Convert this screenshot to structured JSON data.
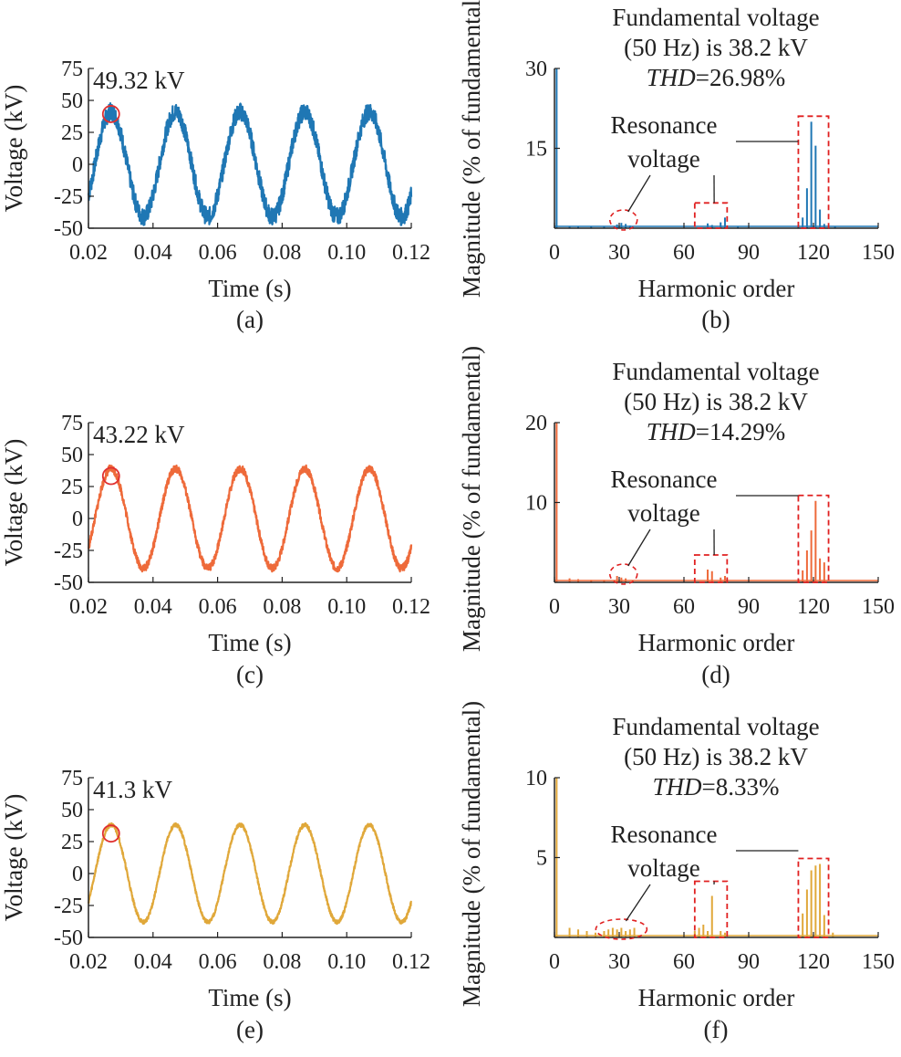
{
  "chart_data": [
    {
      "panel": "(a)",
      "type": "line",
      "xlabel": "Time (s)",
      "ylabel": "Voltage (kV)",
      "xlim": [
        0.02,
        0.12
      ],
      "ylim": [
        -50,
        75
      ],
      "xticks": [
        "0.02",
        "0.04",
        "0.06",
        "0.08",
        "0.10",
        "0.12"
      ],
      "yticks": [
        "75",
        "50",
        "25",
        "0",
        "-25",
        "-50"
      ],
      "color": "#1f77b4",
      "series": [
        {
          "amplitude_kv": 41,
          "frequency_hz": 50,
          "peak_time_s": 0.027,
          "ripple_kv": 7,
          "peak_value_kv": 49.32
        }
      ],
      "peak_label": "49.32 kV"
    },
    {
      "panel": "(b)",
      "type": "bar",
      "xlabel": "Harmonic order",
      "ylabel": "Magnitude (% of fundamental)",
      "xlim": [
        0,
        150
      ],
      "ylim": [
        0,
        30
      ],
      "xticks": [
        "0",
        "30",
        "60",
        "90",
        "120",
        "150"
      ],
      "yticks": [
        "30",
        "15"
      ],
      "color": "#1f77b4",
      "bars": [
        [
          1,
          30
        ],
        [
          7,
          0.4
        ],
        [
          11,
          0.3
        ],
        [
          17,
          0.3
        ],
        [
          23,
          0.3
        ],
        [
          29,
          0.7
        ],
        [
          31,
          1.0
        ],
        [
          33,
          0.8
        ],
        [
          35,
          0.5
        ],
        [
          71,
          0.9
        ],
        [
          73,
          0.6
        ],
        [
          77,
          1.1
        ],
        [
          79,
          2.0
        ],
        [
          85,
          0.4
        ],
        [
          113,
          0.6
        ],
        [
          115,
          2.0
        ],
        [
          117,
          7.5
        ],
        [
          119,
          20.0
        ],
        [
          121,
          15.5
        ],
        [
          123,
          3.5
        ],
        [
          125,
          0.8
        ],
        [
          130,
          0.3
        ]
      ],
      "annotation": {
        "line1": "Fundamental voltage",
        "line2": "(50 Hz) is 38.2 kV",
        "thd_label": "THD",
        "thd_value": "=26.98%"
      },
      "resonance_label": [
        "Resonance",
        "voltage"
      ]
    },
    {
      "panel": "(c)",
      "type": "line",
      "xlabel": "Time (s)",
      "ylabel": "Voltage (kV)",
      "xlim": [
        0.02,
        0.12
      ],
      "ylim": [
        -50,
        75
      ],
      "xticks": [
        "0.02",
        "0.04",
        "0.06",
        "0.08",
        "0.10",
        "0.12"
      ],
      "yticks": [
        "75",
        "50",
        "25",
        "0",
        "-25",
        "-50"
      ],
      "color": "#ee6a3a",
      "series": [
        {
          "amplitude_kv": 39,
          "frequency_hz": 50,
          "peak_time_s": 0.027,
          "ripple_kv": 3,
          "peak_value_kv": 43.22
        }
      ],
      "peak_label": "43.22 kV"
    },
    {
      "panel": "(d)",
      "type": "bar",
      "xlabel": "Harmonic order",
      "ylabel": "Magnitude (% of fundamental)",
      "xlim": [
        0,
        150
      ],
      "ylim": [
        0,
        20
      ],
      "xticks": [
        "0",
        "30",
        "60",
        "90",
        "120",
        "150"
      ],
      "yticks": [
        "20",
        "10"
      ],
      "color": "#ee6a3a",
      "bars": [
        [
          1,
          20
        ],
        [
          7,
          0.5
        ],
        [
          11,
          0.4
        ],
        [
          17,
          0.3
        ],
        [
          23,
          0.3
        ],
        [
          29,
          0.8
        ],
        [
          31,
          0.6
        ],
        [
          33,
          0.5
        ],
        [
          71,
          1.6
        ],
        [
          73,
          1.4
        ],
        [
          77,
          0.6
        ],
        [
          79,
          0.8
        ],
        [
          115,
          1.5
        ],
        [
          117,
          4.0
        ],
        [
          119,
          6.5
        ],
        [
          121,
          10.2
        ],
        [
          123,
          3.0
        ],
        [
          125,
          2.5
        ]
      ],
      "annotation": {
        "line1": "Fundamental voltage",
        "line2": "(50 Hz) is 38.2 kV",
        "thd_label": "THD",
        "thd_value": "=14.29%"
      },
      "resonance_label": [
        "Resonance",
        "voltage"
      ]
    },
    {
      "panel": "(e)",
      "type": "line",
      "xlabel": "Time (s)",
      "ylabel": "Voltage (kV)",
      "xlim": [
        0.02,
        0.12
      ],
      "ylim": [
        -50,
        75
      ],
      "xticks": [
        "0.02",
        "0.04",
        "0.06",
        "0.08",
        "0.10",
        "0.12"
      ],
      "yticks": [
        "75",
        "50",
        "25",
        "0",
        "-25",
        "-50"
      ],
      "color": "#e0a83a",
      "series": [
        {
          "amplitude_kv": 38,
          "frequency_hz": 50,
          "peak_time_s": 0.027,
          "ripple_kv": 1.5,
          "peak_value_kv": 41.3
        }
      ],
      "peak_label": "41.3 kV"
    },
    {
      "panel": "(f)",
      "type": "bar",
      "xlabel": "Harmonic order",
      "ylabel": "Magnitude (% of fundamental)",
      "xlim": [
        0,
        150
      ],
      "ylim": [
        0,
        10
      ],
      "xticks": [
        "0",
        "30",
        "60",
        "90",
        "120",
        "150"
      ],
      "yticks": [
        "10",
        "5"
      ],
      "color": "#e0a83a",
      "bars": [
        [
          1,
          10
        ],
        [
          7,
          0.6
        ],
        [
          11,
          0.5
        ],
        [
          15,
          0.4
        ],
        [
          19,
          0.3
        ],
        [
          23,
          0.4
        ],
        [
          25,
          0.5
        ],
        [
          27,
          0.6
        ],
        [
          29,
          0.5
        ],
        [
          31,
          0.6
        ],
        [
          33,
          0.4
        ],
        [
          35,
          0.5
        ],
        [
          37,
          0.6
        ],
        [
          65,
          0.4
        ],
        [
          67,
          0.6
        ],
        [
          69,
          0.8
        ],
        [
          71,
          0.4
        ],
        [
          73,
          2.6
        ],
        [
          77,
          0.4
        ],
        [
          79,
          0.3
        ],
        [
          115,
          1.5
        ],
        [
          117,
          3.0
        ],
        [
          119,
          4.2
        ],
        [
          121,
          4.5
        ],
        [
          123,
          4.6
        ],
        [
          125,
          1.4
        ],
        [
          129,
          0.3
        ]
      ],
      "annotation": {
        "line1": "Fundamental voltage",
        "line2": "(50 Hz) is 38.2 kV",
        "thd_label": "THD",
        "thd_value": "=8.33%"
      },
      "resonance_label": [
        "Resonance",
        "voltage"
      ]
    }
  ],
  "captions": [
    "(a)",
    "(b)",
    "(c)",
    "(d)",
    "(e)",
    "(f)"
  ]
}
